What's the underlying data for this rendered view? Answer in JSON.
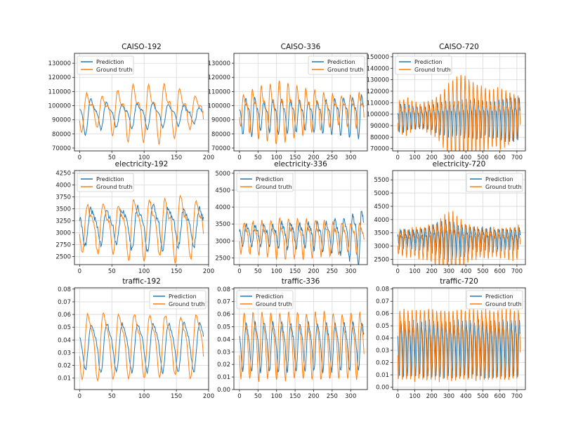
{
  "colors": {
    "prediction": "#1f77b4",
    "ground_truth": "#ff7f0e"
  },
  "chart_data": [
    {
      "type": "line",
      "title": "CAISO-192",
      "xlim": [
        -8,
        200
      ],
      "ylim": [
        68000,
        137000
      ],
      "xticks": [
        0,
        50,
        100,
        150,
        200
      ],
      "yticks": [
        70000,
        80000,
        90000,
        100000,
        110000,
        120000,
        130000
      ],
      "legend": "top-left",
      "series": [
        {
          "name": "Prediction",
          "length": 193,
          "period": 24,
          "phase": 14,
          "base": 94000,
          "amp": [
            15000,
            11000,
            9500,
            10500,
            11000,
            10000,
            8500,
            7000
          ],
          "harm": 0.3,
          "noise": 900,
          "seed": 11
        },
        {
          "name": "Ground truth",
          "length": 193,
          "period": 24,
          "phase": 8,
          "base": 97000,
          "amp": [
            16000,
            13000,
            19000,
            24000,
            24000,
            25000,
            21000,
            14000
          ],
          "harm": 0.35,
          "noise": 700,
          "seed": 12
        }
      ]
    },
    {
      "type": "line",
      "title": "CAISO-336",
      "xlim": [
        -15,
        345
      ],
      "ylim": [
        68000,
        137000
      ],
      "xticks": [
        0,
        50,
        100,
        150,
        200,
        250,
        300
      ],
      "yticks": [
        70000,
        80000,
        90000,
        100000,
        110000,
        120000,
        130000
      ],
      "legend": "top-right",
      "series": [
        {
          "name": "Prediction",
          "length": 337,
          "period": 24,
          "phase": 14,
          "base": 94000,
          "amp": [
            15000,
            16000,
            12000,
            13000,
            15000,
            14000,
            13000,
            12000,
            13000,
            14000,
            15000,
            16000,
            17000,
            18000
          ],
          "harm": 0.3,
          "noise": 900,
          "seed": 21
        },
        {
          "name": "Ground truth",
          "length": 337,
          "period": 24,
          "phase": 8,
          "base": 98000,
          "amp": [
            13000,
            18000,
            22000,
            24000,
            27000,
            25000,
            22000,
            20000,
            18000,
            16000,
            14000,
            12000,
            13000,
            15000
          ],
          "harm": 0.35,
          "noise": 800,
          "seed": 22
        }
      ]
    },
    {
      "type": "line",
      "title": "CAISO-720",
      "xlim": [
        -30,
        750
      ],
      "ylim": [
        68000,
        153000
      ],
      "xticks": [
        0,
        100,
        200,
        300,
        400,
        500,
        600,
        700
      ],
      "yticks": [
        70000,
        80000,
        90000,
        100000,
        110000,
        120000,
        130000,
        140000,
        150000
      ],
      "legend": "top-left",
      "series": [
        {
          "name": "Prediction",
          "length": 721,
          "period": 24,
          "phase": 14,
          "base": 98000,
          "amp": [
            14000,
            14000,
            13000,
            12000,
            12000,
            11000,
            11000,
            12000,
            13000,
            14000,
            16000,
            18000,
            19000,
            18000,
            17000,
            18000,
            19000,
            20000,
            21000,
            21000,
            20000,
            19000,
            18000,
            18000,
            19000,
            20000,
            21000,
            22000,
            22000,
            22000,
            21000
          ],
          "harm": 0.3,
          "noise": 1200,
          "seed": 31
        },
        {
          "name": "Ground truth",
          "length": 721,
          "period": 24,
          "phase": 8,
          "base": 100000,
          "amp": [
            16000,
            18000,
            20000,
            16000,
            14000,
            12000,
            14000,
            16000,
            18000,
            20000,
            24000,
            30000,
            36000,
            40000,
            45000,
            48000,
            46000,
            44000,
            40000,
            38000,
            36000,
            34000,
            32000,
            30000,
            30000,
            32000,
            30000,
            28000,
            26000,
            24000,
            22000
          ],
          "harm": 0.35,
          "noise": 1000,
          "seed": 32
        }
      ]
    },
    {
      "type": "line",
      "title": "electricity-192",
      "xlim": [
        -8,
        200
      ],
      "ylim": [
        2330,
        4300
      ],
      "xticks": [
        0,
        50,
        100,
        150,
        200
      ],
      "yticks": [
        2500,
        2750,
        3000,
        3250,
        3500,
        3750,
        4000,
        4250
      ],
      "legend": "top-left",
      "series": [
        {
          "name": "Prediction",
          "length": 193,
          "period": 24,
          "phase": 14,
          "base": 3150,
          "amp": [
            450,
            420,
            440,
            520,
            560,
            520,
            480,
            460
          ],
          "harm": 0.25,
          "noise": 70,
          "seed": 41
        },
        {
          "name": "Ground truth",
          "length": 193,
          "period": 24,
          "phase": 9,
          "base": 3150,
          "amp": [
            560,
            600,
            580,
            760,
            760,
            700,
            820,
            720
          ],
          "harm": 0.3,
          "noise": 60,
          "seed": 42
        }
      ]
    },
    {
      "type": "line",
      "title": "electricity-336",
      "xlim": [
        -15,
        345
      ],
      "ylim": [
        2300,
        5080
      ],
      "xticks": [
        0,
        50,
        100,
        150,
        200,
        250,
        300
      ],
      "yticks": [
        2500,
        3000,
        3500,
        4000,
        4500,
        5000
      ],
      "legend": "top-left",
      "series": [
        {
          "name": "Prediction",
          "length": 337,
          "period": 24,
          "phase": 14,
          "base": 3200,
          "amp": [
            380,
            360,
            370,
            400,
            460,
            450,
            420,
            430,
            460,
            500,
            560,
            640,
            800,
            1000
          ],
          "harm": 0.25,
          "noise": 70,
          "seed": 51
        },
        {
          "name": "Ground truth",
          "length": 337,
          "period": 24,
          "phase": 9,
          "base": 3150,
          "amp": [
            520,
            560,
            580,
            620,
            680,
            720,
            700,
            680,
            640,
            600,
            580,
            560,
            540,
            520
          ],
          "harm": 0.3,
          "noise": 60,
          "seed": 52
        }
      ]
    },
    {
      "type": "line",
      "title": "electricity-720",
      "xlim": [
        -30,
        750
      ],
      "ylim": [
        2300,
        5850
      ],
      "xticks": [
        0,
        100,
        200,
        300,
        400,
        500,
        600,
        700
      ],
      "yticks": [
        2500,
        3000,
        3500,
        4000,
        4500,
        5000,
        5500
      ],
      "legend": "top-right",
      "series": [
        {
          "name": "Prediction",
          "length": 721,
          "period": 24,
          "phase": 14,
          "base": 3300,
          "amp": [
            380,
            380,
            370,
            380,
            400,
            420,
            460,
            520,
            600,
            680,
            760,
            820,
            860,
            820,
            760,
            700,
            640,
            600,
            560,
            520,
            500,
            480,
            470,
            460,
            460,
            470,
            480,
            480,
            470,
            460,
            450
          ],
          "harm": 0.25,
          "noise": 90,
          "seed": 61
        },
        {
          "name": "Ground truth",
          "length": 721,
          "period": 24,
          "phase": 9,
          "base": 3200,
          "amp": [
            560,
            580,
            600,
            620,
            640,
            660,
            700,
            760,
            860,
            960,
            1100,
            1300,
            1400,
            1450,
            1300,
            1100,
            960,
            860,
            780,
            720,
            680,
            660,
            640,
            620,
            620,
            640,
            660,
            680,
            700,
            720,
            740
          ],
          "harm": 0.3,
          "noise": 80,
          "seed": 62
        }
      ]
    },
    {
      "type": "line",
      "title": "traffic-192",
      "xlim": [
        -8,
        200
      ],
      "ylim": [
        0.001,
        0.081
      ],
      "xticks": [
        0,
        50,
        100,
        150,
        200
      ],
      "yticks": [
        0.01,
        0.02,
        0.03,
        0.04,
        0.05,
        0.06,
        0.07,
        0.08
      ],
      "legend": "top-right",
      "series": [
        {
          "name": "Prediction",
          "length": 193,
          "period": 24,
          "phase": 14,
          "base": 0.036,
          "amp": [
            0.02,
            0.022,
            0.022,
            0.022,
            0.022,
            0.022,
            0.022,
            0.022
          ],
          "harm": 0.2,
          "noise": 0.0015,
          "seed": 71
        },
        {
          "name": "Ground truth",
          "length": 193,
          "period": 24,
          "phase": 9,
          "base": 0.038,
          "amp": [
            0.03,
            0.032,
            0.03,
            0.03,
            0.029,
            0.029,
            0.027,
            0.03
          ],
          "harm": 0.25,
          "noise": 0.0012,
          "seed": 72
        }
      ]
    },
    {
      "type": "line",
      "title": "traffic-336",
      "xlim": [
        -15,
        345
      ],
      "ylim": [
        0.0,
        0.081
      ],
      "xticks": [
        0,
        50,
        100,
        150,
        200,
        250,
        300
      ],
      "yticks": [
        0.0,
        0.01,
        0.02,
        0.03,
        0.04,
        0.05,
        0.06,
        0.07,
        0.08
      ],
      "legend": "top-left",
      "series": [
        {
          "name": "Prediction",
          "length": 337,
          "period": 24,
          "phase": 14,
          "base": 0.036,
          "amp": [
            0.022,
            0.022,
            0.023,
            0.023,
            0.022,
            0.022,
            0.022,
            0.022,
            0.022,
            0.022,
            0.022,
            0.022,
            0.022,
            0.022
          ],
          "harm": 0.2,
          "noise": 0.0015,
          "seed": 81
        },
        {
          "name": "Ground truth",
          "length": 337,
          "period": 24,
          "phase": 9,
          "base": 0.038,
          "amp": [
            0.03,
            0.031,
            0.032,
            0.03,
            0.031,
            0.032,
            0.031,
            0.03,
            0.031,
            0.032,
            0.031,
            0.03,
            0.03,
            0.031
          ],
          "harm": 0.25,
          "noise": 0.0012,
          "seed": 82
        }
      ]
    },
    {
      "type": "line",
      "title": "traffic-720",
      "xlim": [
        -30,
        750
      ],
      "ylim": [
        -0.002,
        0.081
      ],
      "xticks": [
        0,
        100,
        200,
        300,
        400,
        500,
        600,
        700
      ],
      "yticks": [
        0.0,
        0.01,
        0.02,
        0.03,
        0.04,
        0.05,
        0.06,
        0.07,
        0.08
      ],
      "legend": "top-right",
      "series": [
        {
          "name": "Prediction",
          "length": 721,
          "period": 24,
          "phase": 14,
          "base": 0.034,
          "amp": [
            0.026,
            0.026,
            0.026,
            0.026,
            0.026,
            0.026,
            0.026,
            0.026,
            0.026,
            0.026,
            0.026,
            0.026,
            0.026,
            0.026,
            0.026,
            0.026,
            0.026,
            0.026,
            0.026,
            0.026,
            0.026,
            0.026,
            0.026,
            0.026,
            0.026,
            0.026,
            0.026,
            0.026,
            0.026,
            0.026,
            0.026
          ],
          "harm": 0.2,
          "noise": 0.002,
          "seed": 91
        },
        {
          "name": "Ground truth",
          "length": 721,
          "period": 24,
          "phase": 9,
          "base": 0.038,
          "amp": [
            0.033,
            0.034,
            0.033,
            0.033,
            0.034,
            0.033,
            0.033,
            0.034,
            0.033,
            0.033,
            0.034,
            0.033,
            0.033,
            0.034,
            0.033,
            0.033,
            0.034,
            0.033,
            0.033,
            0.034,
            0.033,
            0.033,
            0.034,
            0.033,
            0.033,
            0.034,
            0.033,
            0.033,
            0.034,
            0.033,
            0.033
          ],
          "harm": 0.25,
          "noise": 0.0015,
          "seed": 92
        }
      ]
    }
  ]
}
